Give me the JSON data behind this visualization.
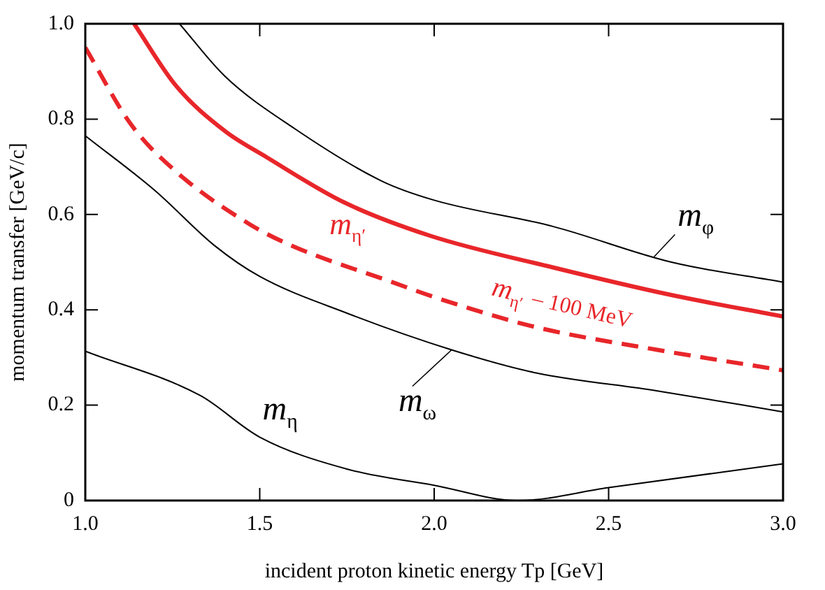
{
  "chart_data": {
    "type": "line",
    "xlabel": "incident proton kinetic energy Tp [GeV]",
    "ylabel": "momentum transfer [GeV/c]",
    "xlim": [
      1,
      3
    ],
    "ylim": [
      0,
      1
    ],
    "xticks": [
      {
        "value": 1,
        "label": "1.0"
      },
      1.5,
      {
        "value": 2,
        "label": "2.0"
      },
      2.5,
      {
        "value": 3,
        "label": "3.0"
      }
    ],
    "yticks": [
      0,
      0.2,
      0.4,
      0.6,
      0.8,
      {
        "value": 1,
        "label": "1.0"
      }
    ],
    "grid": false,
    "marker": "none",
    "series": [
      {
        "name": "m$_{φ}$",
        "color": "#000000",
        "line_style": "solid",
        "x": [
          1.27,
          1.4,
          1.6,
          1.85,
          2.0,
          2.34,
          2.68,
          3.0
        ],
        "values": [
          1.0,
          0.89,
          0.78,
          0.67,
          0.63,
          0.575,
          0.5,
          0.458
        ]
      },
      {
        "name": "m$_{η′}$",
        "color": "#e8262a",
        "line_style": "solid",
        "x": [
          1.14,
          1.26,
          1.4,
          1.52,
          1.74,
          1.99,
          2.34,
          2.68,
          3.0
        ],
        "values": [
          1.0,
          0.87,
          0.775,
          0.72,
          0.626,
          0.555,
          0.489,
          0.431,
          0.386
        ]
      },
      {
        "name": "m$_{η′}$ – 100 MeV",
        "color": "#e8262a",
        "line_style": "dashed",
        "x": [
          1.0,
          1.13,
          1.26,
          1.47,
          1.59,
          1.88,
          2.02,
          2.29,
          2.64,
          3.0
        ],
        "values": [
          0.95,
          0.79,
          0.69,
          0.58,
          0.535,
          0.458,
          0.422,
          0.364,
          0.316,
          0.273
        ]
      },
      {
        "name": "m$_{ω}$",
        "color": "#000000",
        "line_style": "solid",
        "x": [
          1.0,
          1.2,
          1.37,
          1.5,
          1.75,
          2.05,
          2.29,
          2.64,
          3.0
        ],
        "values": [
          0.765,
          0.65,
          0.535,
          0.47,
          0.393,
          0.316,
          0.268,
          0.23,
          0.186
        ]
      },
      {
        "name": "m$_{η}$",
        "color": "#000000",
        "line_style": "solid",
        "x": [
          1.0,
          1.33,
          1.5,
          1.75,
          2.0,
          2.24,
          2.5,
          3.0
        ],
        "values": [
          0.313,
          0.22,
          0.133,
          0.066,
          0.032,
          0.0,
          0.027,
          0.077
        ]
      }
    ]
  }
}
